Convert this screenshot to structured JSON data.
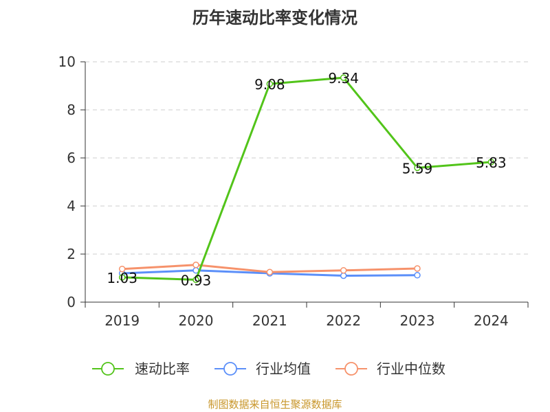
{
  "chart_data": {
    "type": "line",
    "title": "历年速动比率变化情况",
    "categories": [
      "2019",
      "2020",
      "2021",
      "2022",
      "2023",
      "2024"
    ],
    "ylim": [
      0,
      10
    ],
    "yticks": [
      "0",
      "2",
      "4",
      "6",
      "8",
      "10"
    ],
    "grid": true,
    "legend_position": "bottom",
    "series": [
      {
        "name": "速动比率",
        "color": "#52c41a",
        "values": [
          1.03,
          0.93,
          9.08,
          9.34,
          5.59,
          5.83
        ],
        "data_labels": [
          "1.03",
          "0.93",
          "9.08",
          "9.34",
          "5.59",
          "5.83"
        ]
      },
      {
        "name": "行业均值",
        "color": "#5b8ff9",
        "values": [
          1.2,
          1.32,
          1.2,
          1.1,
          1.12,
          null
        ]
      },
      {
        "name": "行业中位数",
        "color": "#f6926b",
        "values": [
          1.38,
          1.55,
          1.25,
          1.32,
          1.4,
          null
        ]
      }
    ]
  },
  "source_note": "制图数据来自恒生聚源数据库"
}
